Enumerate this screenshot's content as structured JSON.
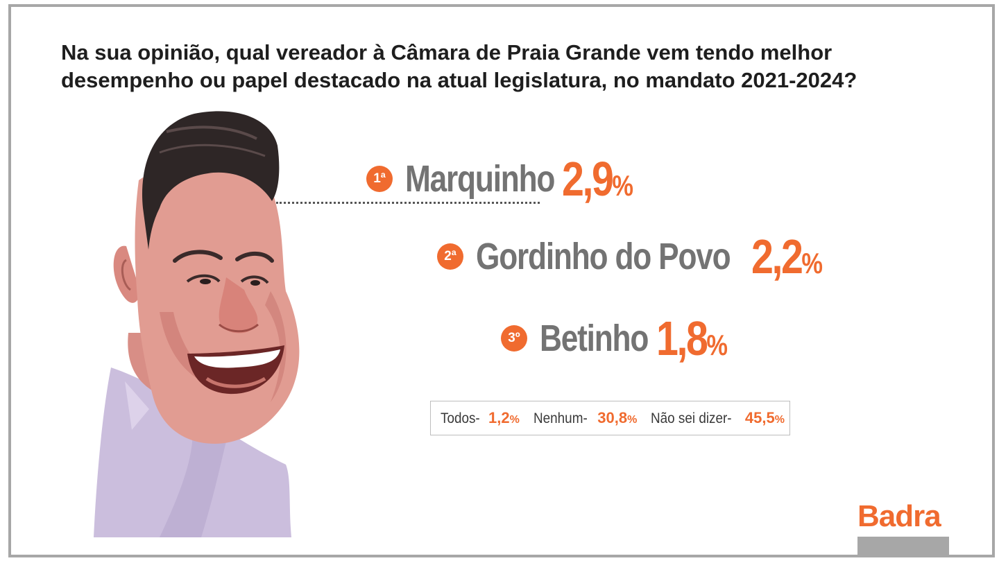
{
  "question": "Na sua opinião, qual vereador à Câmara de Praia Grande vem tendo melhor desempenho ou papel destacado na atual legislatura, no mandato 2021-2024?",
  "colors": {
    "accent": "#f06b2f",
    "name_gray": "#737373",
    "frame": "#a7a7a7"
  },
  "ranking": [
    {
      "position": "1ª",
      "name": "Marquinho",
      "value": "2,9",
      "percent_sign": "%"
    },
    {
      "position": "2ª",
      "name": "Gordinho do Povo",
      "value": "2,2",
      "percent_sign": "%"
    },
    {
      "position": "3º",
      "name": "Betinho",
      "value": "1,8",
      "percent_sign": "%"
    }
  ],
  "others": [
    {
      "label": "Todos-",
      "value": "1,2",
      "percent_sign": "%"
    },
    {
      "label": "Nenhum-",
      "value": "30,8",
      "percent_sign": "%"
    },
    {
      "label": "Não sei dizer-",
      "value": "45,5",
      "percent_sign": "%"
    }
  ],
  "logo": "Badra",
  "illustration": "caricature-portrait"
}
